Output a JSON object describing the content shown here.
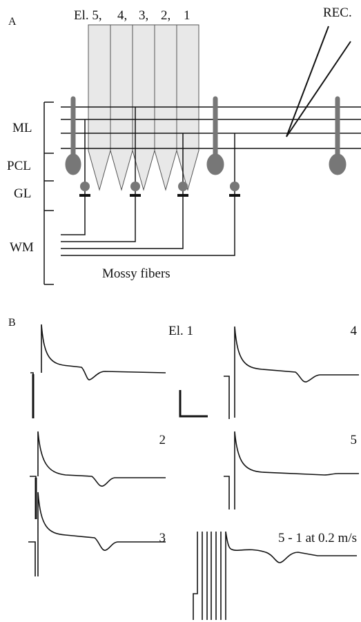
{
  "panel_a": {
    "label": "A",
    "electrode_labels": [
      "El. 5,",
      "4,",
      "3,",
      "2,",
      "1"
    ],
    "recording_label": "REC.",
    "layer_labels": [
      "ML",
      "PCL",
      "GL",
      "WM"
    ],
    "fiber_label": "Mossy fibers"
  },
  "panel_b": {
    "label": "B",
    "trace_labels": [
      "El. 1",
      "4",
      "2",
      "5",
      "3",
      "5 - 1 at 0.2 m/s"
    ]
  }
}
